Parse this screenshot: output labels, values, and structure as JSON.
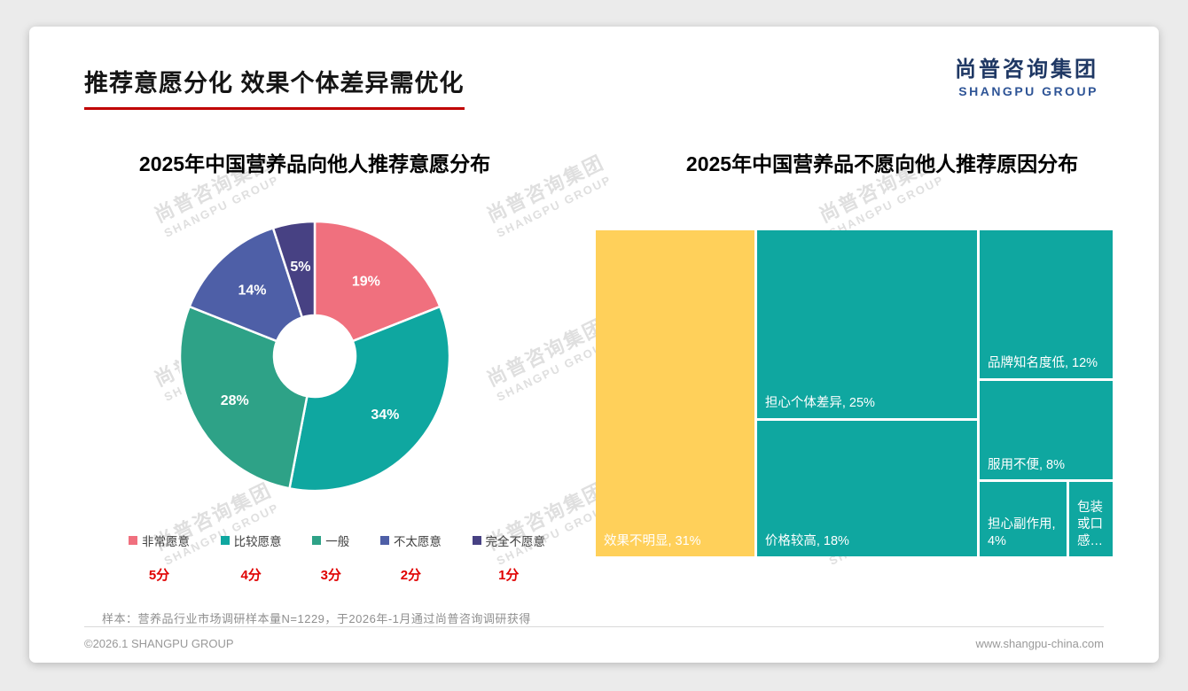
{
  "page": {
    "title": "推荐意愿分化 效果个体差异需优化",
    "logo": {
      "cn": "尚普咨询集团",
      "en": "SHANGPU GROUP"
    },
    "watermark": {
      "cn": "尚普咨询集团",
      "en": "SHANGPU GROUP"
    },
    "note": "样本：营养品行业市场调研样本量N=1229，于2026年-1月通过尚普咨询调研获得",
    "footer": {
      "left": "©2026.1 SHANGPU GROUP",
      "right": "www.shangpu-china.com"
    }
  },
  "chart_data": [
    {
      "type": "pie",
      "subtype": "donut",
      "title": "2025年中国营养品向他人推荐意愿分布",
      "categories": [
        "非常愿意",
        "比较愿意",
        "一般",
        "不太愿意",
        "完全不愿意"
      ],
      "values": [
        19,
        34,
        28,
        14,
        5
      ],
      "value_labels": [
        "19%",
        "34%",
        "28%",
        "14%",
        "5%"
      ],
      "scores": [
        "5分",
        "4分",
        "3分",
        "2分",
        "1分"
      ],
      "colors": [
        "#F0707E",
        "#0FA7A0",
        "#2EA287",
        "#4E5FA7",
        "#474183"
      ],
      "legend_position": "bottom"
    },
    {
      "type": "treemap",
      "title": "2025年中国营养品不愿向他人推荐原因分布",
      "items": [
        {
          "label": "效果不明显",
          "value": 31,
          "display": "效果不明显, 31%",
          "color": "#FFD05A"
        },
        {
          "label": "担心个体差异",
          "value": 25,
          "display": "担心个体差异, 25%",
          "color": "#0FA7A0"
        },
        {
          "label": "价格较高",
          "value": 18,
          "display": "价格较高, 18%",
          "color": "#0FA7A0"
        },
        {
          "label": "品牌知名度低",
          "value": 12,
          "display": "品牌知名度低, 12%",
          "color": "#0FA7A0"
        },
        {
          "label": "服用不便",
          "value": 8,
          "display": "服用不便, 8%",
          "color": "#0FA7A0"
        },
        {
          "label": "担心副作用",
          "value": 4,
          "display": "担心副作用, 4%",
          "color": "#0FA7A0"
        },
        {
          "label": "包装或口感",
          "value": 2,
          "display": "包装或口感…",
          "color": "#0FA7A0"
        }
      ]
    }
  ]
}
